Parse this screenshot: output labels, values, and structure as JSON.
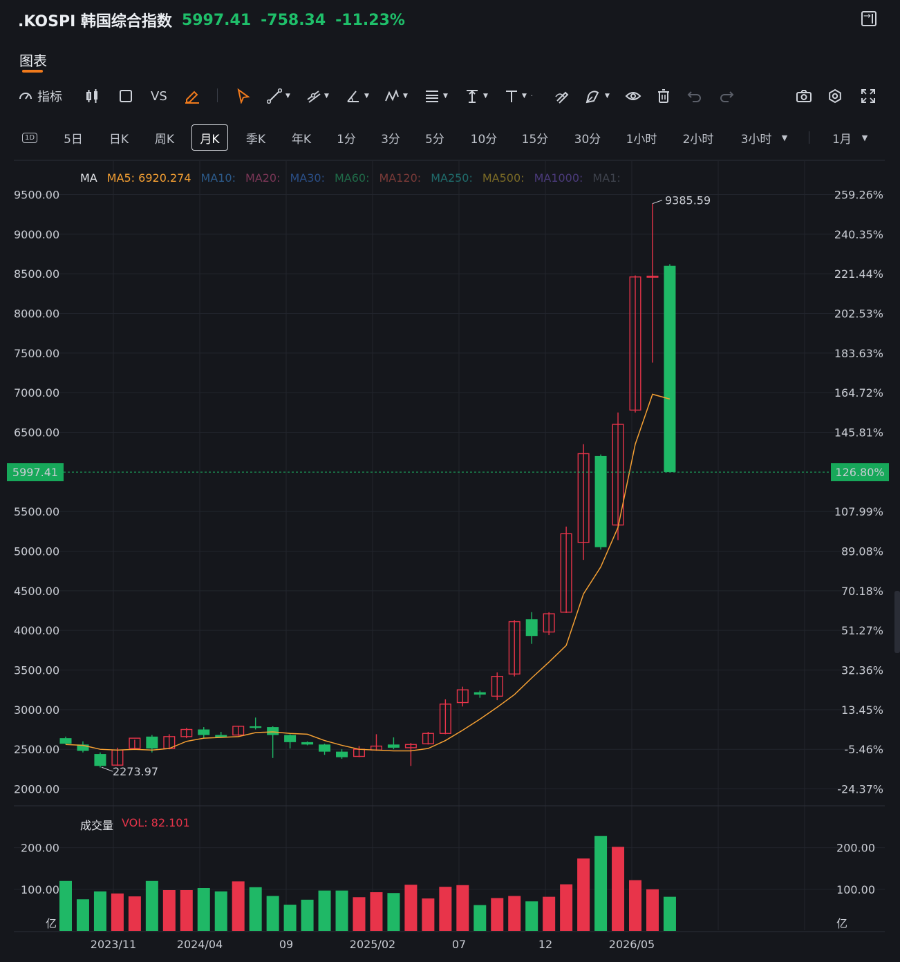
{
  "header": {
    "title": ".KOSPI 韩国综合指数",
    "price": "5997.41",
    "change": "-758.34",
    "change_pct": "-11.23%"
  },
  "tabs": {
    "chart": "图表"
  },
  "toolbar": {
    "indicator": "指标",
    "vs": "VS"
  },
  "periods": [
    "5日",
    "日K",
    "周K",
    "月K",
    "季K",
    "年K",
    "1分",
    "3分",
    "5分",
    "10分",
    "15分",
    "30分",
    "1小时",
    "2小时",
    "3小时",
    "1月"
  ],
  "period_icon": "1D",
  "active_period": "月K",
  "ma_legend": {
    "label": "MA",
    "ma5": "MA5: 6920.274",
    "others": [
      "MA10:",
      "MA20:",
      "MA30:",
      "MA60:",
      "MA120:",
      "MA250:",
      "MA500:",
      "MA1000:",
      "MA1:"
    ],
    "colors": [
      "#f5a033",
      "#2c5a8a",
      "#7a3656",
      "#2a4e86",
      "#1f6a48",
      "#7a3a38",
      "#1f6a6a",
      "#7a6a26",
      "#4a3a7a",
      "#3a3e48"
    ]
  },
  "vol_legend": {
    "label": "成交量",
    "value": "VOL: 82.101"
  },
  "price_label": "5997.41",
  "pct_label": "126.80%",
  "colors": {
    "up": "#e8344a",
    "down": "#1fb866",
    "ma5": "#f5a033",
    "bg": "#15171c"
  },
  "chart_data": {
    "type": "candlestick",
    "interval": "month",
    "x_ticks": [
      "2023/11",
      "2024/04",
      "09",
      "2025/02",
      "07",
      "12",
      "2026/05"
    ],
    "y_ticks": [
      "9500.00",
      "9000.00",
      "8500.00",
      "8000.00",
      "7500.00",
      "7000.00",
      "6500.00",
      "5997.41",
      "5500.00",
      "5000.00",
      "4500.00",
      "4000.00",
      "3500.00",
      "3000.00",
      "2500.00",
      "2000.00"
    ],
    "y_right_ticks": [
      "259.26%",
      "240.35%",
      "221.44%",
      "202.53%",
      "183.63%",
      "164.72%",
      "145.81%",
      "126.80%",
      "107.99%",
      "89.08%",
      "70.18%",
      "51.27%",
      "32.36%",
      "13.45%",
      "-5.46%",
      "-24.37%"
    ],
    "ylim": [
      2000,
      9500
    ],
    "annotations": {
      "high": "9385.59",
      "low": "2273.97"
    },
    "candles": [
      {
        "o": 2640,
        "h": 2660,
        "l": 2560,
        "c": 2570
      },
      {
        "o": 2560,
        "h": 2600,
        "l": 2460,
        "c": 2480
      },
      {
        "o": 2440,
        "h": 2460,
        "l": 2270,
        "c": 2290
      },
      {
        "o": 2300,
        "h": 2520,
        "l": 2290,
        "c": 2490
      },
      {
        "o": 2510,
        "h": 2620,
        "l": 2500,
        "c": 2640
      },
      {
        "o": 2660,
        "h": 2680,
        "l": 2460,
        "c": 2510
      },
      {
        "o": 2510,
        "h": 2690,
        "l": 2500,
        "c": 2660
      },
      {
        "o": 2660,
        "h": 2770,
        "l": 2640,
        "c": 2750
      },
      {
        "o": 2750,
        "h": 2780,
        "l": 2640,
        "c": 2680
      },
      {
        "o": 2680,
        "h": 2720,
        "l": 2650,
        "c": 2650
      },
      {
        "o": 2680,
        "h": 2790,
        "l": 2670,
        "c": 2790
      },
      {
        "o": 2790,
        "h": 2900,
        "l": 2750,
        "c": 2770
      },
      {
        "o": 2780,
        "h": 2790,
        "l": 2390,
        "c": 2680
      },
      {
        "o": 2680,
        "h": 2690,
        "l": 2510,
        "c": 2590
      },
      {
        "o": 2590,
        "h": 2600,
        "l": 2550,
        "c": 2560
      },
      {
        "o": 2560,
        "h": 2570,
        "l": 2430,
        "c": 2470
      },
      {
        "o": 2470,
        "h": 2500,
        "l": 2380,
        "c": 2400
      },
      {
        "o": 2410,
        "h": 2540,
        "l": 2400,
        "c": 2500
      },
      {
        "o": 2490,
        "h": 2690,
        "l": 2480,
        "c": 2540
      },
      {
        "o": 2560,
        "h": 2650,
        "l": 2500,
        "c": 2520
      },
      {
        "o": 2520,
        "h": 2580,
        "l": 2290,
        "c": 2560
      },
      {
        "o": 2570,
        "h": 2720,
        "l": 2560,
        "c": 2700
      },
      {
        "o": 2700,
        "h": 3130,
        "l": 2690,
        "c": 3070
      },
      {
        "o": 3090,
        "h": 3290,
        "l": 3040,
        "c": 3250
      },
      {
        "o": 3220,
        "h": 3240,
        "l": 3150,
        "c": 3190
      },
      {
        "o": 3170,
        "h": 3470,
        "l": 3120,
        "c": 3420
      },
      {
        "o": 3450,
        "h": 4130,
        "l": 3420,
        "c": 4110
      },
      {
        "o": 4140,
        "h": 4230,
        "l": 3830,
        "c": 3930
      },
      {
        "o": 3980,
        "h": 4230,
        "l": 3940,
        "c": 4210
      },
      {
        "o": 4230,
        "h": 5310,
        "l": 4220,
        "c": 5220
      },
      {
        "o": 5110,
        "h": 6350,
        "l": 4890,
        "c": 6230
      },
      {
        "o": 6200,
        "h": 6220,
        "l": 5020,
        "c": 5050
      },
      {
        "o": 5330,
        "h": 6750,
        "l": 5140,
        "c": 6600
      },
      {
        "o": 6780,
        "h": 8480,
        "l": 6750,
        "c": 8460
      },
      {
        "o": 8470,
        "h": 9385.59,
        "l": 7380,
        "c": 8470
      },
      {
        "o": 8600,
        "h": 8620,
        "l": 5997.41,
        "c": 5997.41
      }
    ],
    "ma5": [
      2560,
      2550,
      2500,
      2490,
      2500,
      2490,
      2510,
      2600,
      2640,
      2650,
      2660,
      2710,
      2720,
      2700,
      2690,
      2610,
      2550,
      2500,
      2490,
      2480,
      2480,
      2510,
      2610,
      2740,
      2880,
      3030,
      3190,
      3400,
      3600,
      3810,
      4460,
      4800,
      5300,
      6350,
      6980,
      6920
    ],
    "volume": {
      "ylim": [
        0,
        240
      ],
      "y_ticks": [
        "200.00",
        "100.00"
      ],
      "unit": "亿",
      "values": [
        120,
        76,
        95,
        90,
        83,
        120,
        98,
        98,
        103,
        95,
        119,
        105,
        84,
        63,
        75,
        97,
        97,
        81,
        93,
        91,
        111,
        78,
        106,
        110,
        62,
        79,
        84,
        71,
        82,
        112,
        174,
        228,
        202,
        122,
        100,
        82
      ]
    }
  }
}
